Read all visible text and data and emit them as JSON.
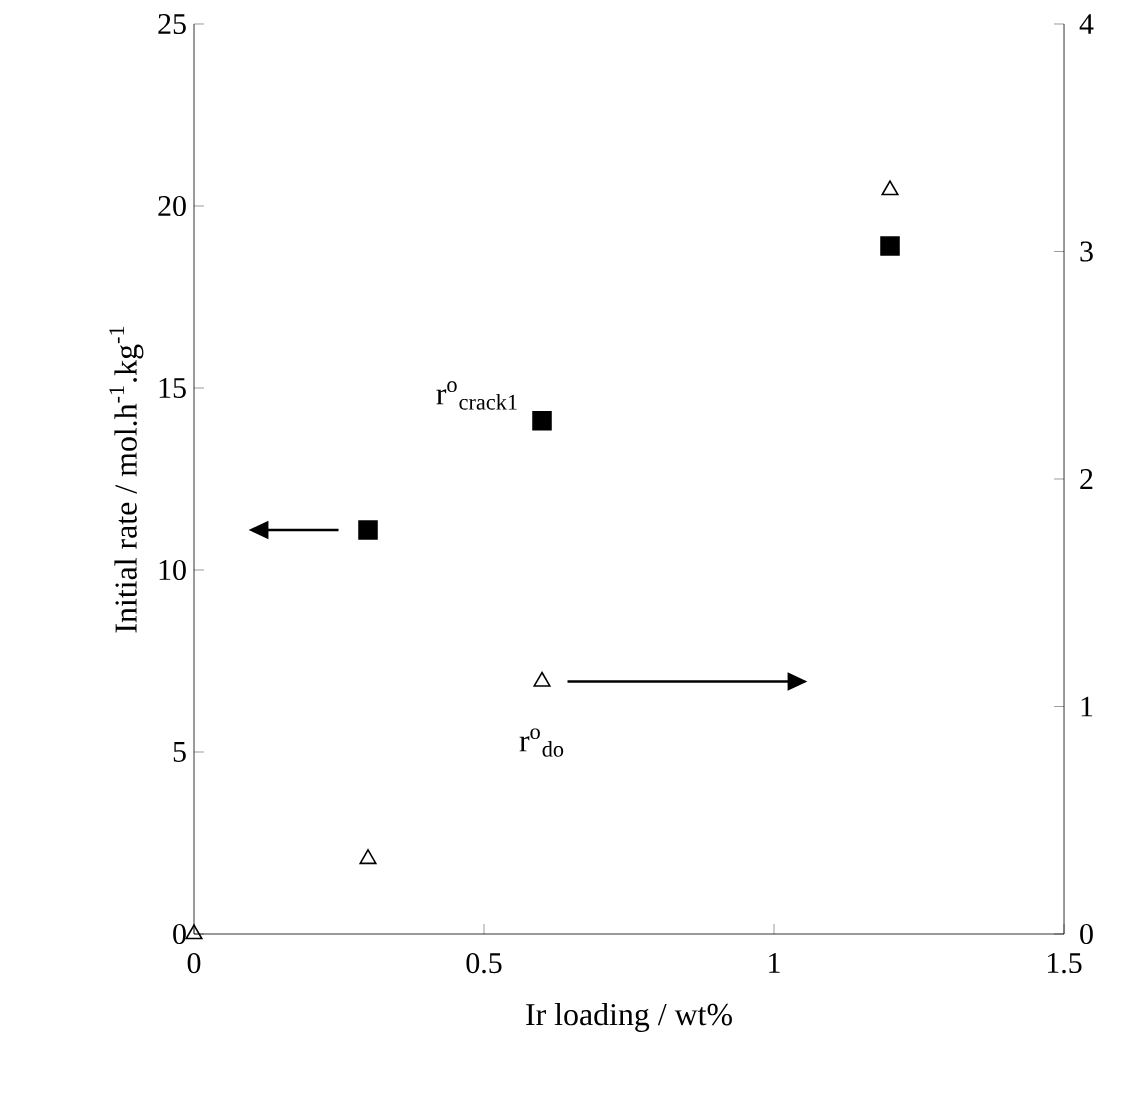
{
  "chart_data": {
    "type": "scatter",
    "xlabel": "Ir loading / wt%",
    "ylabel": "Initial rate / mol.h$^{-1}$.kg$^{-1}$",
    "xlim": [
      0,
      1.5
    ],
    "xticks": [
      0,
      0.5,
      1,
      1.5
    ],
    "ylim": [
      0,
      25
    ],
    "yticks": [
      0,
      5,
      10,
      15,
      20,
      25
    ],
    "y2lim": [
      0,
      4
    ],
    "y2ticks": [
      0,
      1,
      2,
      3,
      4
    ],
    "series": [
      {
        "color": "#000000",
        "marker": "square",
        "x": [
          0.3,
          0.6,
          1.2
        ],
        "values": [
          11.1,
          14.1,
          18.9
        ]
      },
      {
        "color": "#000000",
        "marker": "triangle",
        "axis": "y2",
        "x": [
          0,
          0.3,
          0.6,
          1.2
        ],
        "values": [
          0,
          0.33,
          1.11,
          3.27
        ]
      }
    ],
    "annotations": [
      "r$^{o}$$_{crack1}$",
      "r$^{o}$$_{do}$"
    ],
    "grid": false
  }
}
